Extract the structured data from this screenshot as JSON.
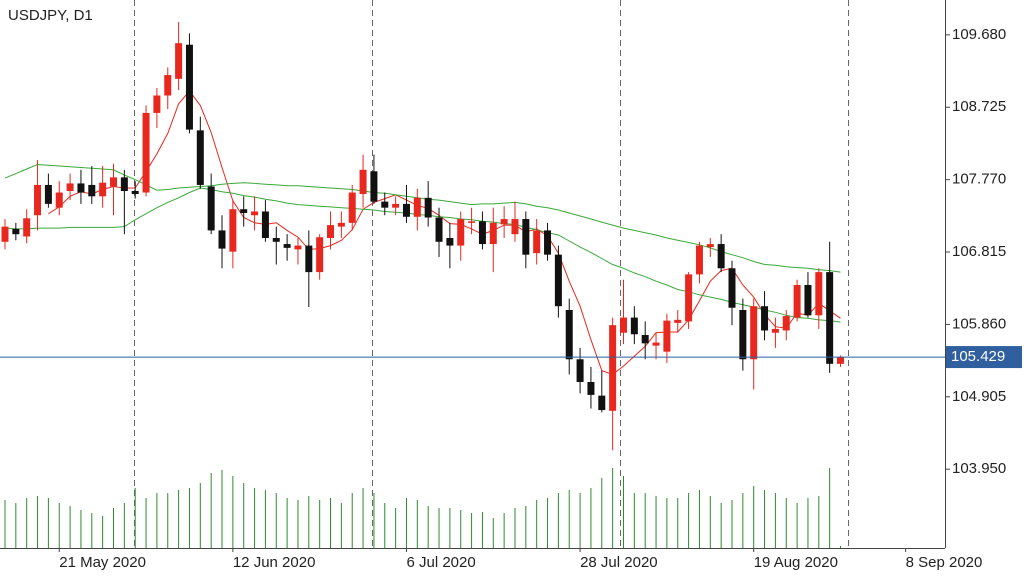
{
  "chart_data": {
    "type": "candlestick",
    "title": "USDJPY, D1",
    "open": [
      106.95,
      107.12,
      107.02,
      107.3,
      107.7,
      107.4,
      107.62,
      107.72,
      107.7,
      107.55,
      107.68,
      107.8,
      107.62,
      107.6,
      108.65,
      108.88,
      109.1,
      109.55,
      108.42,
      107.68,
      107.1,
      106.82,
      107.38,
      107.3,
      107.35,
      107.0,
      106.92,
      106.85,
      106.9,
      106.55,
      107.0,
      107.15,
      107.2,
      107.58,
      107.88,
      107.48,
      107.4,
      107.45,
      107.28,
      107.53,
      107.27,
      107.0,
      106.9,
      107.2,
      107.22,
      106.92,
      107.18,
      107.05,
      107.25,
      106.8,
      107.1,
      106.78,
      106.05,
      105.4,
      105.1,
      104.92,
      104.72,
      105.75,
      105.95,
      105.72,
      105.58,
      105.5,
      105.88,
      105.9,
      106.52,
      106.88,
      106.92,
      106.6,
      106.05,
      105.4,
      106.1,
      105.75,
      105.78,
      105.95,
      106.38,
      105.98,
      106.55,
      105.34
    ],
    "high": [
      107.25,
      107.2,
      107.38,
      108.03,
      107.85,
      107.75,
      107.85,
      107.9,
      107.95,
      107.95,
      107.98,
      107.9,
      107.75,
      108.75,
      108.98,
      109.25,
      109.85,
      109.7,
      108.6,
      107.85,
      107.3,
      107.5,
      107.55,
      107.55,
      107.5,
      107.15,
      107.05,
      107.0,
      107.1,
      107.05,
      107.35,
      107.35,
      107.7,
      108.1,
      108.1,
      107.6,
      107.55,
      107.7,
      107.65,
      107.75,
      107.4,
      107.2,
      107.35,
      107.4,
      107.35,
      107.4,
      107.42,
      107.48,
      107.35,
      107.25,
      107.2,
      106.9,
      106.2,
      105.55,
      105.3,
      105.25,
      105.95,
      106.45,
      106.1,
      105.9,
      105.75,
      106.0,
      106.05,
      106.55,
      106.95,
      107.0,
      107.05,
      106.7,
      106.2,
      106.2,
      106.3,
      105.95,
      106.05,
      106.45,
      106.55,
      106.6,
      106.95,
      105.45
    ],
    "low": [
      106.85,
      106.97,
      106.93,
      107.1,
      107.4,
      107.3,
      107.5,
      107.45,
      107.45,
      107.4,
      107.3,
      107.05,
      107.52,
      107.55,
      108.45,
      108.7,
      108.95,
      108.38,
      107.65,
      107.05,
      106.6,
      106.6,
      107.15,
      107.1,
      106.95,
      106.65,
      106.7,
      106.65,
      106.09,
      106.45,
      106.85,
      107.0,
      107.1,
      107.4,
      107.45,
      107.3,
      107.3,
      107.2,
      107.1,
      107.15,
      106.75,
      106.6,
      106.7,
      107.05,
      106.85,
      106.55,
      107.0,
      106.95,
      106.6,
      106.65,
      106.7,
      105.95,
      105.2,
      104.95,
      104.75,
      104.7,
      104.2,
      105.6,
      105.6,
      105.4,
      105.4,
      105.35,
      105.75,
      105.8,
      106.4,
      106.75,
      106.55,
      105.85,
      105.25,
      105.0,
      105.65,
      105.55,
      105.65,
      105.9,
      105.95,
      105.8,
      105.22,
      105.3
    ],
    "close": [
      107.15,
      107.05,
      107.26,
      107.7,
      107.45,
      107.6,
      107.72,
      107.6,
      107.55,
      107.73,
      107.8,
      107.62,
      107.58,
      108.65,
      108.88,
      109.15,
      109.57,
      108.43,
      107.7,
      107.1,
      106.86,
      107.38,
      107.33,
      107.35,
      107.0,
      106.95,
      106.87,
      106.9,
      106.55,
      107.01,
      107.17,
      107.2,
      107.6,
      107.9,
      107.48,
      107.4,
      107.45,
      107.28,
      107.53,
      107.27,
      106.95,
      106.9,
      107.25,
      107.22,
      106.92,
      107.2,
      107.25,
      107.25,
      106.78,
      107.1,
      106.78,
      106.1,
      105.4,
      105.1,
      104.93,
      104.73,
      105.85,
      105.95,
      105.73,
      105.61,
      105.62,
      105.91,
      105.92,
      106.52,
      106.9,
      106.92,
      106.6,
      106.08,
      105.4,
      106.1,
      105.78,
      105.8,
      105.97,
      106.38,
      105.98,
      106.55,
      105.34,
      105.429
    ],
    "up_color": "#e8281e",
    "down_color": "#111111",
    "volume": [
      48,
      45,
      50,
      52,
      50,
      45,
      42,
      38,
      35,
      32,
      40,
      45,
      60,
      50,
      55,
      55,
      58,
      60,
      65,
      75,
      78,
      72,
      65,
      60,
      58,
      55,
      50,
      48,
      52,
      48,
      50,
      45,
      55,
      60,
      55,
      45,
      40,
      50,
      48,
      42,
      40,
      40,
      38,
      35,
      36,
      30,
      35,
      40,
      42,
      48,
      50,
      55,
      58,
      55,
      60,
      70,
      80,
      72,
      55,
      55,
      52,
      50,
      50,
      55,
      58,
      52,
      45,
      48,
      55,
      62,
      58,
      55,
      50,
      45,
      50,
      52,
      80,
      2
    ],
    "volume_color": "#2e8b2e",
    "overlays": [
      {
        "color": "#e8281e",
        "values": [
          null,
          null,
          null,
          null,
          107.32,
          107.41,
          107.55,
          107.61,
          107.58,
          107.64,
          107.68,
          107.66,
          107.66,
          107.88,
          108.11,
          108.38,
          108.77,
          108.94,
          108.75,
          108.39,
          107.93,
          107.49,
          107.27,
          107.2,
          107.18,
          107.2,
          107.1,
          107.01,
          106.85,
          106.86,
          106.9,
          106.97,
          107.11,
          107.38,
          107.47,
          107.52,
          107.57,
          107.5,
          107.43,
          107.39,
          107.3,
          107.19,
          107.18,
          107.12,
          107.05,
          107.1,
          107.17,
          107.17,
          107.08,
          107.12,
          107.03,
          106.8,
          106.43,
          106.1,
          105.66,
          105.25,
          105.2,
          105.31,
          105.44,
          105.57,
          105.75,
          105.76,
          105.76,
          105.92,
          106.17,
          106.43,
          106.57,
          106.6,
          106.38,
          106.22,
          105.99,
          105.83,
          105.81,
          106.01,
          105.98,
          106.14,
          106.04,
          105.94
        ]
      },
      {
        "color": "#3aa83a",
        "values": [
          107.79,
          107.85,
          107.91,
          107.97,
          107.96,
          107.95,
          107.94,
          107.93,
          107.92,
          107.91,
          107.9,
          107.83,
          107.77,
          107.7,
          107.63,
          107.64,
          107.66,
          107.67,
          107.68,
          107.69,
          107.71,
          107.72,
          107.73,
          107.72,
          107.71,
          107.7,
          107.69,
          107.69,
          107.68,
          107.67,
          107.66,
          107.65,
          107.64,
          107.62,
          107.6,
          107.59,
          107.57,
          107.55,
          107.53,
          107.51,
          107.5,
          107.48,
          107.46,
          107.44,
          107.45,
          107.45,
          107.46,
          107.47,
          107.45,
          107.42,
          107.4,
          107.37,
          107.33,
          107.29,
          107.25,
          107.21,
          107.17,
          107.13,
          107.1,
          107.07,
          107.04,
          107.0,
          106.97,
          106.94,
          106.91,
          106.87,
          106.82,
          106.78,
          106.74,
          106.69,
          106.65,
          106.64,
          106.62,
          106.61,
          106.6,
          106.58,
          106.57,
          106.55
        ]
      },
      {
        "color": "#3aa83a",
        "values": [
          107.13,
          107.12,
          107.12,
          107.13,
          107.13,
          107.13,
          107.14,
          107.14,
          107.14,
          107.14,
          107.14,
          107.15,
          107.24,
          107.32,
          107.4,
          107.47,
          107.53,
          107.6,
          107.66,
          107.64,
          107.61,
          107.59,
          107.56,
          107.54,
          107.51,
          107.49,
          107.46,
          107.44,
          107.43,
          107.42,
          107.41,
          107.4,
          107.39,
          107.38,
          107.37,
          107.35,
          107.34,
          107.33,
          107.31,
          107.3,
          107.28,
          107.27,
          107.25,
          107.24,
          107.22,
          107.21,
          107.19,
          107.18,
          107.14,
          107.11,
          107.07,
          107.04,
          106.96,
          106.88,
          106.81,
          106.73,
          106.65,
          106.6,
          106.54,
          106.49,
          106.43,
          106.38,
          106.32,
          106.29,
          106.25,
          106.22,
          106.19,
          106.15,
          106.12,
          106.09,
          106.05,
          106.02,
          105.98,
          105.95,
          105.94,
          105.92,
          105.91,
          105.89
        ]
      }
    ],
    "last_price": 105.429,
    "last_price_color": "#2f5f9e",
    "xlim": [
      -0.46,
      86.63
    ],
    "xticks": [
      {
        "value": 5,
        "label": "21 May 2020"
      },
      {
        "value": 21,
        "label": "12 Jun 2020"
      },
      {
        "value": 37,
        "label": "6 Jul 2020"
      },
      {
        "value": 53,
        "label": "28 Jul 2020"
      },
      {
        "value": 69,
        "label": "19 Aug 2020"
      },
      {
        "value": 83,
        "label": "8 Sep 2020"
      }
    ],
    "ylim": [
      102.91,
      110.14
    ],
    "yticks": [
      {
        "value": 109.68,
        "label": "109.680"
      },
      108.725,
      {
        "value": 107.77,
        "label": "107.770"
      },
      106.815,
      {
        "value": 105.86,
        "label": "105.860"
      },
      104.905,
      {
        "value": 103.95,
        "label": "103.950"
      }
    ]
  }
}
